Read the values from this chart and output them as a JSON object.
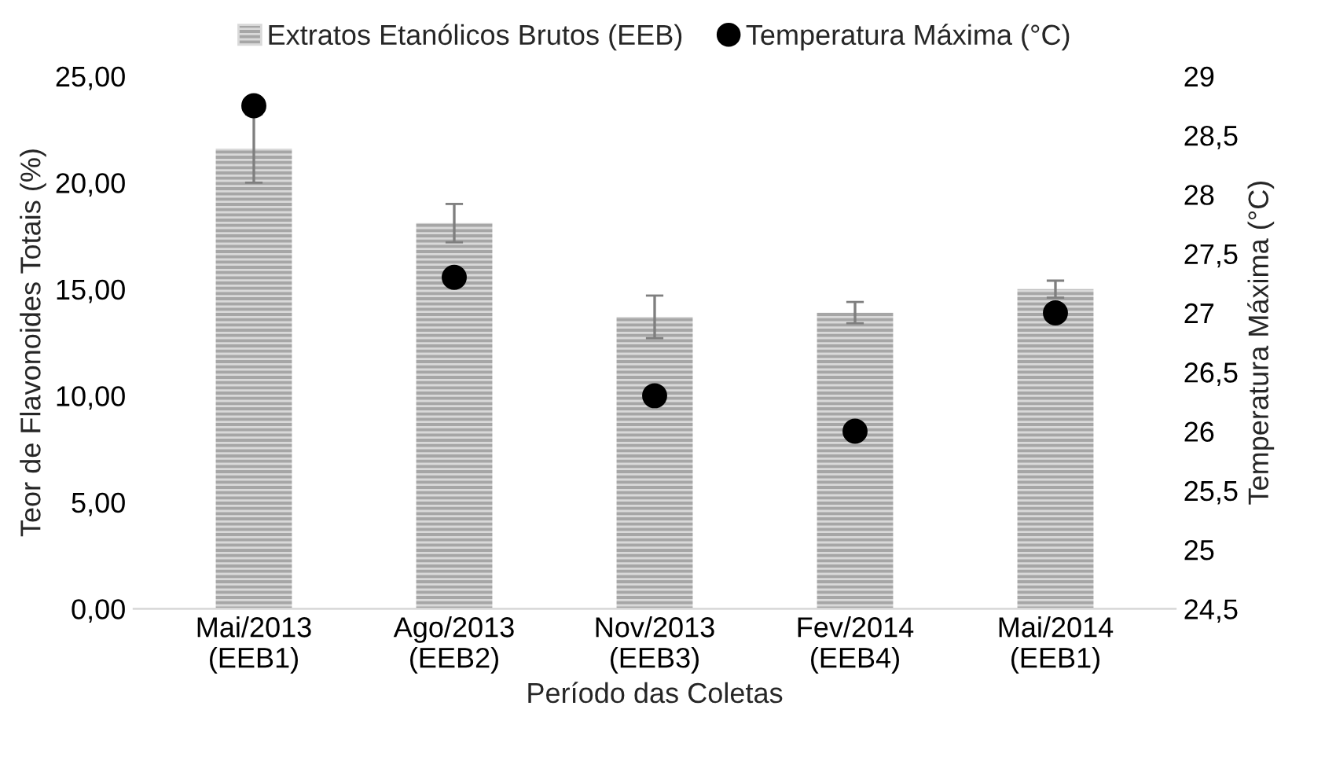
{
  "chart_data": {
    "type": "bar",
    "xlabel": "Período das Coletas",
    "ylabel": "Teor de Flavonoides Totais (%)",
    "y2label": "Temperatura Máxima (°C)",
    "categories": [
      "Mai/2013\n(EEB1)",
      "Ago/2013\n(EEB2)",
      "Nov/2013\n(EEB3)",
      "Fev/2014\n(EEB4)",
      "Mai/2014\n(EEB1)"
    ],
    "series": [
      {
        "name": "Extratos Etanólicos Brutos (EEB)",
        "color": "#a6a6a6",
        "values": [
          21.6,
          18.1,
          13.7,
          13.9,
          15.0
        ],
        "errors": [
          1.6,
          0.9,
          1.0,
          0.5,
          0.4
        ]
      },
      {
        "name": "Temperatura Máxima (°C)",
        "type": "scatter",
        "axis": "y2",
        "color": "#000000",
        "marker": "circle",
        "values": [
          28.75,
          27.3,
          26.3,
          26.0,
          27.0
        ]
      }
    ],
    "ylim": [
      0,
      25
    ],
    "yticks": [
      {
        "value": 0,
        "label": "0,00"
      },
      {
        "value": 5,
        "label": "5,00"
      },
      {
        "value": 10,
        "label": "10,00"
      },
      {
        "value": 15,
        "label": "15,00"
      },
      {
        "value": 20,
        "label": "20,00"
      },
      {
        "value": 25,
        "label": "25,00"
      }
    ],
    "y2lim": [
      24.5,
      29
    ],
    "y2ticks": [
      {
        "value": 24.5,
        "label": "24,5"
      },
      {
        "value": 25,
        "label": "25"
      },
      {
        "value": 25.5,
        "label": "25,5"
      },
      {
        "value": 26,
        "label": "26"
      },
      {
        "value": 26.5,
        "label": "26,5"
      },
      {
        "value": 27,
        "label": "27"
      },
      {
        "value": 27.5,
        "label": "27,5"
      },
      {
        "value": 28,
        "label": "28"
      },
      {
        "value": 28.5,
        "label": "28,5"
      },
      {
        "value": 29,
        "label": "29"
      }
    ],
    "grid": false,
    "legend": "top"
  }
}
